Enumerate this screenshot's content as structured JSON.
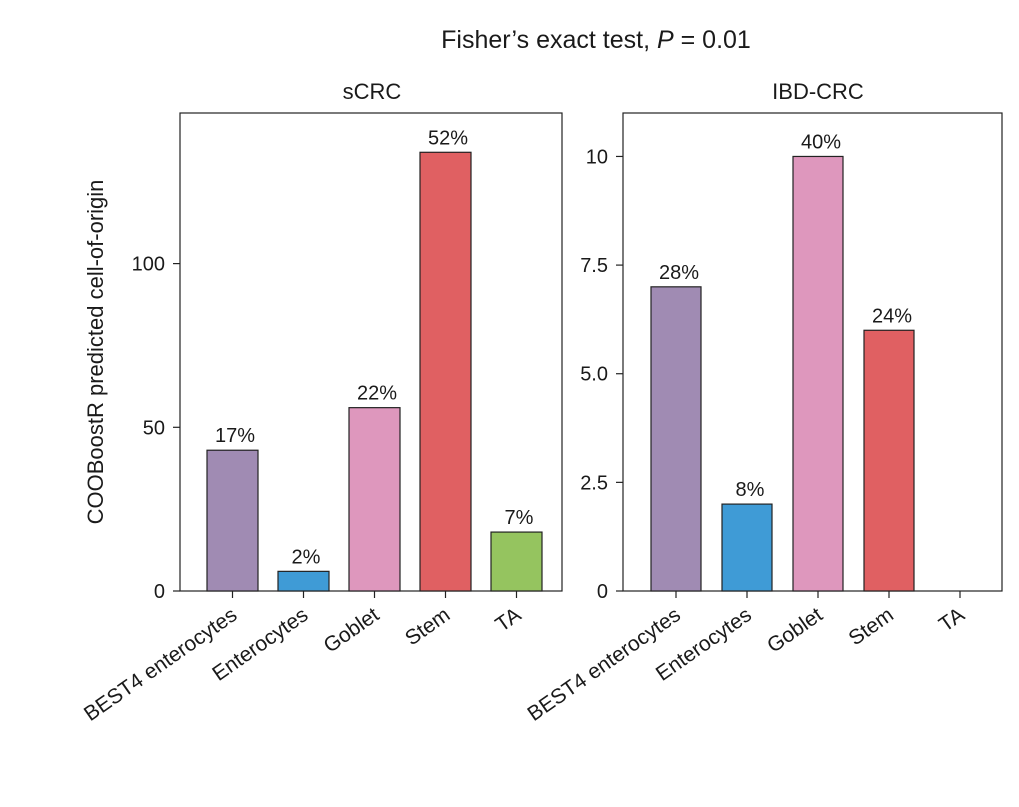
{
  "figure": {
    "title_prefix": "Fisher’s exact test, ",
    "title_p": "P",
    "title_suffix": " = 0.01",
    "ylabel": "COOBoostR predicted cell-of-origin"
  },
  "chart_data": [
    {
      "type": "bar",
      "title": "sCRC",
      "xlabel": "",
      "ylabel": "COOBoostR predicted cell-of-origin",
      "categories": [
        "BEST4 enterocytes",
        "Enterocytes",
        "Goblet",
        "Stem",
        "TA"
      ],
      "values": [
        43,
        6,
        56,
        134,
        18
      ],
      "data_labels": [
        "17%",
        "2%",
        "22%",
        "52%",
        "7%"
      ],
      "colors": [
        "#a08bb3",
        "#3f9bd6",
        "#de97bd",
        "#e06062",
        "#95c45f"
      ],
      "ylim": [
        0,
        146
      ],
      "yticks": [
        0,
        50,
        100
      ],
      "ytick_labels": [
        "0",
        "50",
        "100"
      ]
    },
    {
      "type": "bar",
      "title": "IBD-CRC",
      "xlabel": "",
      "ylabel": "",
      "categories": [
        "BEST4 enterocytes",
        "Enterocytes",
        "Goblet",
        "Stem",
        "TA"
      ],
      "values": [
        7,
        2,
        10,
        6,
        0
      ],
      "data_labels": [
        "28%",
        "8%",
        "40%",
        "24%",
        ""
      ],
      "colors": [
        "#a08bb3",
        "#3f9bd6",
        "#de97bd",
        "#e06062",
        "#95c45f"
      ],
      "ylim": [
        0,
        11
      ],
      "yticks": [
        0,
        2.5,
        5,
        7.5,
        10
      ],
      "ytick_labels": [
        "0",
        "2.5",
        "5.0",
        "7.5",
        "10"
      ]
    }
  ]
}
